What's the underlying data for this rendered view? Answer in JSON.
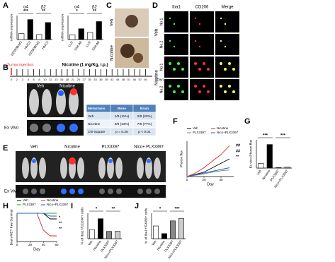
{
  "panel_labels": [
    "A",
    "B",
    "C",
    "D",
    "E",
    "F",
    "G",
    "H",
    "I",
    "J"
  ],
  "panel_b": {
    "tumor_injection": "Tumor injection",
    "treatment": "Nicotine (1 mg/Kg, i.p.)",
    "days": [
      "0",
      "2",
      "3",
      "4",
      "6",
      "8",
      "10",
      "12",
      "13",
      "16",
      "18",
      "21",
      "24",
      "27",
      "30",
      "33",
      "36",
      "39",
      "42",
      "45",
      "48",
      "51",
      "54",
      "57",
      "60"
    ],
    "day_unit": "(Day)",
    "groups": [
      "Veh",
      "Nicotine"
    ],
    "ex_vivo": "Ex Vivo",
    "table": {
      "header": [
        "Metastasis",
        "Bone",
        "Brain"
      ],
      "rows": [
        [
          "Veh",
          "1/9 (11%)",
          "2/9 (22%)"
        ],
        [
          "Nicotine",
          "3/9 (33%)",
          "7/9 (77%)"
        ],
        [
          "Chi-Square",
          "p = 0.25",
          "p < 0.01"
        ]
      ]
    }
  },
  "panel_c": {
    "labels": [
      "Veh",
      "Nicotine"
    ]
  },
  "panel_d": {
    "columns": [
      "Iba1",
      "CD206",
      "Merge"
    ],
    "groups": [
      "Veh",
      "Nicotine"
    ],
    "rows": [
      "No.1",
      "No.2",
      "No.1",
      "No.2"
    ]
  },
  "panel_e": {
    "groups": [
      "Veh",
      "Nicotine",
      "PLX3397",
      "Nico+ PLX3397"
    ],
    "ex_vivo": "Ex Vivo"
  },
  "chart_data": [
    {
      "type": "bar",
      "ylabel": "mRNA expression",
      "groups": [
        "α4",
        "β2"
      ],
      "categories": [
        "H2030BrM3",
        "HMC3",
        "H2030BrM3",
        "HMC3"
      ],
      "values": [
        0.3,
        1.0,
        0.25,
        0.85
      ],
      "colors": [
        "#ffffff",
        "#000000",
        "#ffffff",
        "#000000"
      ],
      "ylim": [
        0,
        1.2
      ],
      "annotations": [
        "***",
        "**"
      ]
    },
    {
      "type": "bar",
      "ylabel": "mRNA expression",
      "groups": [
        "α4",
        "β2"
      ],
      "categories": [
        "LL/2",
        "SIM-A9",
        "LL/2",
        "SIM-A9"
      ],
      "values": [
        0.2,
        0.45,
        0.3,
        0.75
      ],
      "colors": [
        "#ffffff",
        "#000000",
        "#ffffff",
        "#000000"
      ],
      "ylim": [
        0,
        1.0
      ],
      "annotations": [
        "*",
        "**"
      ]
    },
    {
      "type": "line",
      "ylabel": "Photon flux",
      "xlabel": "Day",
      "x": [
        0,
        10,
        20,
        30,
        40,
        50
      ],
      "xlim": [
        0,
        55
      ],
      "xticks": [
        0,
        20,
        40
      ],
      "ylim": [
        0,
        8
      ],
      "series": [
        {
          "name": "Veh",
          "color": "#000000",
          "values": [
            0,
            0.5,
            1,
            2,
            3,
            4
          ]
        },
        {
          "name": "Nicotine",
          "color": "#d62728",
          "values": [
            0,
            0.8,
            2,
            3.5,
            5,
            7
          ]
        },
        {
          "name": "PLX3397",
          "color": "#888888",
          "values": [
            0,
            0.3,
            0.6,
            1,
            1.3,
            1.5
          ]
        },
        {
          "name": "Nico+PLX3397",
          "color": "#1f5fbf",
          "values": [
            0,
            0.4,
            0.8,
            1.2,
            1.6,
            2
          ]
        }
      ],
      "annotations": [
        "##",
        "##",
        "**"
      ]
    },
    {
      "type": "bar",
      "ylabel": "Ex vivo Photon flux",
      "categories": [
        "Veh",
        "Nicotine",
        "PLX3397",
        "Nico+PLX3397"
      ],
      "values": [
        0.2,
        1.0,
        0.02,
        0.05
      ],
      "colors": [
        "#ffffff",
        "#000000",
        "#888888",
        "#cccccc"
      ],
      "ylim": [
        0,
        1.2
      ],
      "annotations": [
        "***",
        "***"
      ]
    },
    {
      "type": "line",
      "ylabel": "Brain-MET free Survival",
      "xlabel": "Day",
      "x": [
        0,
        30,
        40,
        50,
        60
      ],
      "xlim": [
        0,
        60
      ],
      "xticks": [
        0,
        20,
        40,
        60
      ],
      "ylim": [
        0,
        100
      ],
      "series": [
        {
          "name": "Veh",
          "color": "#000000",
          "values": [
            100,
            100,
            100,
            80,
            80
          ]
        },
        {
          "name": "Nicotine",
          "color": "#d62728",
          "values": [
            100,
            100,
            40,
            20,
            20
          ]
        },
        {
          "name": "PLX3397",
          "color": "#2ca02c",
          "values": [
            100,
            100,
            100,
            100,
            100
          ]
        },
        {
          "name": "Nico+PLX3397",
          "color": "#1f5fbf",
          "values": [
            100,
            100,
            100,
            90,
            90
          ]
        }
      ],
      "annotations": [
        "*",
        "**",
        "**"
      ]
    },
    {
      "type": "bar",
      "ylabel": "% of Iba1+/CD206+ cells",
      "categories": [
        "Veh",
        "Nicotine",
        "PLX3397",
        "Nico+PLX3397"
      ],
      "values": [
        2.5,
        5.5,
        2,
        2
      ],
      "colors": [
        "#ffffff",
        "#000000",
        "#888888",
        "#cccccc"
      ],
      "ylim": [
        0,
        7
      ],
      "annotations": [
        "*",
        "**"
      ]
    },
    {
      "type": "bar",
      "ylabel": "% of Iba1+/F4/80+ cells",
      "categories": [
        "Veh",
        "Nicotine",
        "PLX3397",
        "Nico+PLX3397"
      ],
      "values": [
        2.5,
        1,
        3.5,
        4
      ],
      "colors": [
        "#ffffff",
        "#000000",
        "#888888",
        "#cccccc"
      ],
      "ylim": [
        0,
        5
      ],
      "annotations": [
        "*",
        "***"
      ]
    }
  ]
}
